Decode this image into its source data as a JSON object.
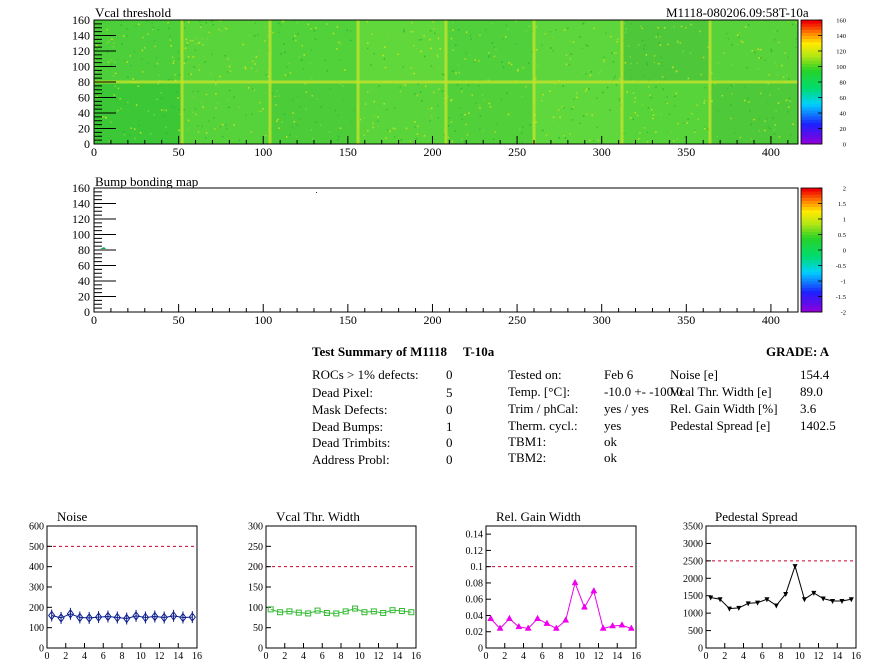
{
  "top_map": {
    "title": "Vcal threshold",
    "module_label": "M1118-080206.09:58T-10a",
    "x_ticks": [
      "0",
      "50",
      "100",
      "150",
      "200",
      "250",
      "300",
      "350",
      "400"
    ],
    "y_ticks": [
      "0",
      "20",
      "40",
      "60",
      "80",
      "100",
      "120",
      "140",
      "160"
    ],
    "colorbar_ticks": [
      "0",
      "20",
      "40",
      "60",
      "80",
      "100",
      "120",
      "140",
      "160"
    ]
  },
  "bump_map": {
    "title": "Bump bonding map",
    "x_ticks": [
      "0",
      "50",
      "100",
      "150",
      "200",
      "250",
      "300",
      "350",
      "400"
    ],
    "y_ticks": [
      "0",
      "20",
      "40",
      "60",
      "80",
      "100",
      "120",
      "140",
      "160"
    ],
    "colorbar_ticks": [
      "-2",
      "-1.5",
      "-1",
      "-0.5",
      "0",
      "0.5",
      "1",
      "1.5",
      "2"
    ]
  },
  "summary": {
    "title": "Test Summary of M1118",
    "title_tag": "T-10a",
    "grade": "GRADE:  A",
    "left_labels": [
      "ROCs > 1% defects:",
      "Dead Pixel:",
      "Mask Defects:",
      "Dead Bumps:",
      "Dead Trimbits:",
      "Address Probl:"
    ],
    "left_values": [
      "0",
      "5",
      "0",
      "1",
      "0",
      "0"
    ],
    "mid_labels": [
      "Tested on:",
      "Temp. [°C]:",
      "Trim / phCal:",
      "Therm. cycl.:",
      "TBM1:",
      "TBM2:"
    ],
    "mid_values": [
      "Feb 6",
      "-10.0 +- -100.0",
      "yes / yes",
      "yes",
      "ok",
      "ok"
    ],
    "right_labels": [
      "Noise [e]",
      "Vcal Thr. Width [e]",
      "Rel. Gain Width [%]",
      "Pedestal Spread [e]"
    ],
    "right_values": [
      "154.4",
      "89.0",
      "3.6",
      "1402.5"
    ]
  },
  "colors": {
    "noise": "#0a1e8c",
    "vcal": "#33bb33",
    "gain": "#ee00ee",
    "pedestal": "#000000",
    "limit_line": "#cc0033"
  },
  "chart_data": [
    {
      "type": "heatmap",
      "title": "Vcal threshold",
      "x_range": [
        0,
        416
      ],
      "y_range": [
        0,
        160
      ],
      "z_range": [
        0,
        160
      ],
      "roc_layout": "2 rows x 8 ROCs",
      "typical_value": 100
    },
    {
      "type": "heatmap",
      "title": "Bump bonding map",
      "x_range": [
        0,
        416
      ],
      "y_range": [
        0,
        160
      ],
      "z_range": [
        -2,
        2
      ]
    },
    {
      "type": "line",
      "title": "Noise",
      "x": [
        0,
        1,
        2,
        3,
        4,
        5,
        6,
        7,
        8,
        9,
        10,
        11,
        12,
        13,
        14,
        15
      ],
      "values": [
        160,
        148,
        168,
        150,
        148,
        152,
        155,
        150,
        145,
        158,
        150,
        155,
        150,
        158,
        150,
        152
      ],
      "ylim": [
        0,
        600
      ],
      "xlim": [
        0,
        16
      ],
      "limit": 500,
      "y_ticks": [
        "0",
        "100",
        "200",
        "300",
        "400",
        "500",
        "600"
      ],
      "x_ticks": [
        "0",
        "2",
        "4",
        "6",
        "8",
        "10",
        "12",
        "14",
        "16"
      ]
    },
    {
      "type": "line",
      "title": "Vcal Thr. Width",
      "x": [
        0,
        1,
        2,
        3,
        4,
        5,
        6,
        7,
        8,
        9,
        10,
        11,
        12,
        13,
        14,
        15
      ],
      "values": [
        95,
        88,
        90,
        87,
        85,
        92,
        86,
        85,
        90,
        97,
        88,
        90,
        86,
        93,
        91,
        88
      ],
      "ylim": [
        0,
        300
      ],
      "xlim": [
        0,
        16
      ],
      "limit": 200,
      "y_ticks": [
        "0",
        "50",
        "100",
        "150",
        "200",
        "250",
        "300"
      ],
      "x_ticks": [
        "0",
        "2",
        "4",
        "6",
        "8",
        "10",
        "12",
        "14",
        "16"
      ]
    },
    {
      "type": "line",
      "title": "Rel. Gain Width",
      "x": [
        0,
        1,
        2,
        3,
        4,
        5,
        6,
        7,
        8,
        9,
        10,
        11,
        12,
        13,
        14,
        15
      ],
      "values": [
        0.036,
        0.024,
        0.036,
        0.026,
        0.024,
        0.036,
        0.03,
        0.024,
        0.034,
        0.08,
        0.05,
        0.07,
        0.024,
        0.027,
        0.028,
        0.024
      ],
      "ylim": [
        0,
        0.15
      ],
      "xlim": [
        0,
        16
      ],
      "limit": 0.1,
      "y_ticks": [
        "0",
        "0.02",
        "0.04",
        "0.06",
        "0.08",
        "0.1",
        "0.12",
        "0.14"
      ],
      "x_ticks": [
        "0",
        "2",
        "4",
        "6",
        "8",
        "10",
        "12",
        "14",
        "16"
      ]
    },
    {
      "type": "line",
      "title": "Pedestal Spread",
      "x": [
        0,
        1,
        2,
        3,
        4,
        5,
        6,
        7,
        8,
        9,
        10,
        11,
        12,
        13,
        14,
        15
      ],
      "values": [
        1450,
        1400,
        1130,
        1150,
        1280,
        1300,
        1400,
        1220,
        1550,
        2350,
        1400,
        1580,
        1420,
        1350,
        1350,
        1400
      ],
      "ylim": [
        0,
        3500
      ],
      "xlim": [
        0,
        16
      ],
      "limit": 2500,
      "y_ticks": [
        "0",
        "500",
        "1000",
        "1500",
        "2000",
        "2500",
        "3000",
        "3500"
      ],
      "x_ticks": [
        "0",
        "2",
        "4",
        "6",
        "8",
        "10",
        "12",
        "14",
        "16"
      ]
    }
  ]
}
